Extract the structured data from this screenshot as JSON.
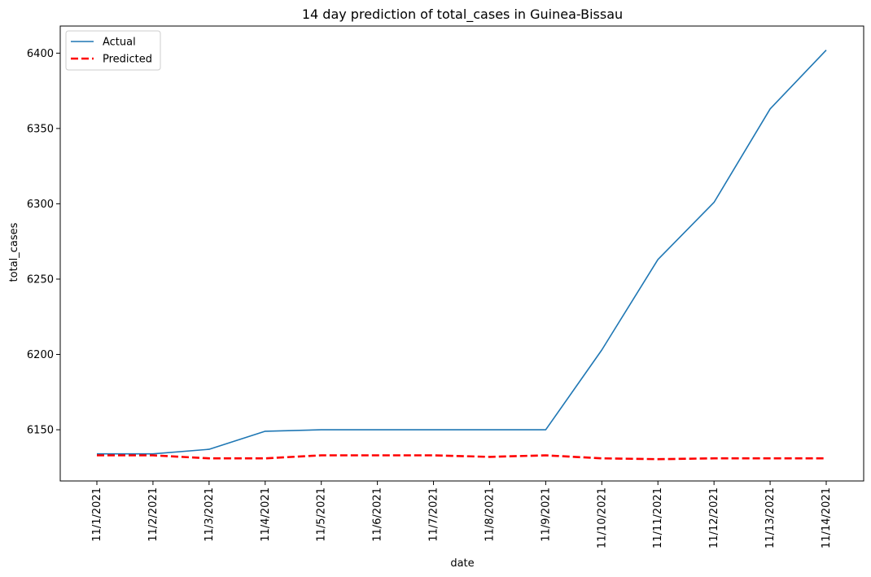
{
  "chart_data": {
    "type": "line",
    "title": "14 day prediction of total_cases in Guinea-Bissau",
    "xlabel": "date",
    "ylabel": "total_cases",
    "x": [
      "11/1/2021",
      "11/2/2021",
      "11/3/2021",
      "11/4/2021",
      "11/5/2021",
      "11/6/2021",
      "11/7/2021",
      "11/8/2021",
      "11/9/2021",
      "11/10/2021",
      "11/11/2021",
      "11/12/2021",
      "11/13/2021",
      "11/14/2021"
    ],
    "yticks": [
      6150,
      6200,
      6250,
      6300,
      6350,
      6400
    ],
    "ylim": [
      6116,
      6418
    ],
    "grid": false,
    "legend_position": "upper-left",
    "series": [
      {
        "name": "Actual",
        "color": "#1f77b4",
        "style": "solid",
        "values": [
          6134,
          6134,
          6137,
          6149,
          6150,
          6150,
          6150,
          6150,
          6150,
          6203,
          6263,
          6301,
          6363,
          6402
        ]
      },
      {
        "name": "Predicted",
        "color": "#ff0000",
        "style": "dashed",
        "values": [
          6133,
          6133,
          6131,
          6131,
          6133,
          6133,
          6133,
          6132,
          6133,
          6131,
          6130.5,
          6131,
          6131,
          6131
        ]
      }
    ]
  }
}
